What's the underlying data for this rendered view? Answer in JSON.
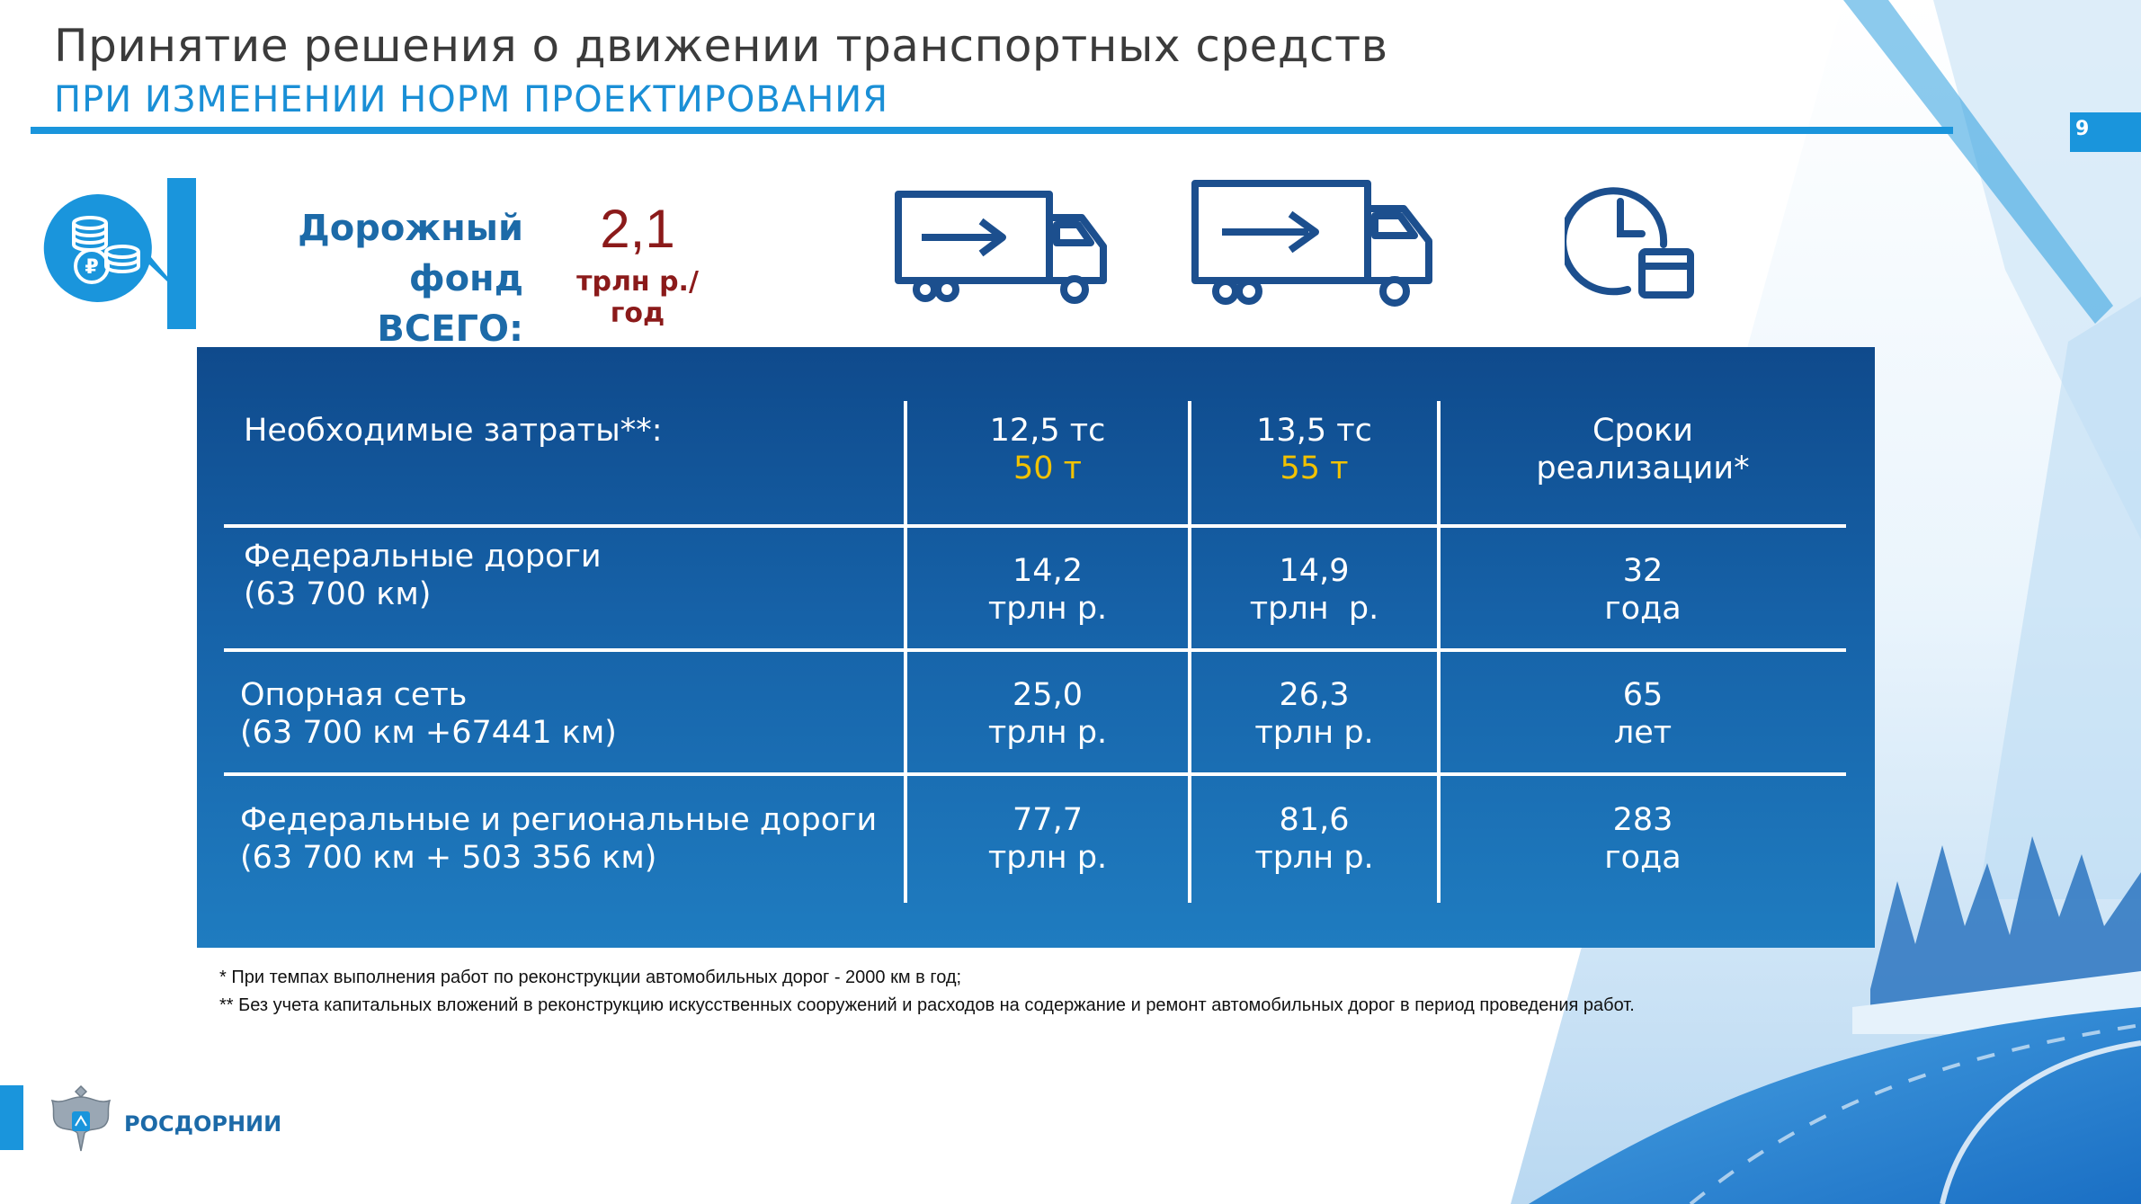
{
  "header": {
    "title": "Принятие решения о движении транспортных средств",
    "subtitle": "ПРИ ИЗМЕНЕНИИ НОРМ ПРОЕКТИРОВАНИЯ",
    "page_number": "9"
  },
  "fund": {
    "label_line1": "Дорожный фонд",
    "label_line2": "ВСЕГО:",
    "value": "2,1",
    "unit": "трлн р./год",
    "icon": "coins-ruble-icon"
  },
  "icons": {
    "truck_small": "truck-icon",
    "truck_large": "truck-icon",
    "clock": "clock-calendar-icon"
  },
  "table": {
    "header": {
      "label": "Необходимые затраты**:",
      "col1_line1": "12,5 тс",
      "col1_line2": "50 т",
      "col2_line1": "13,5 тс",
      "col2_line2": "55 т",
      "col3_line1": "Сроки",
      "col3_line2": "реализации*"
    },
    "rows": [
      {
        "label_line1": "Федеральные дороги",
        "label_line2": "(63 700 км)",
        "c1_line1": "14,2",
        "c1_line2": "трлн р.",
        "c2_line1": "14,9",
        "c2_line2": "трлн  р.",
        "c3_line1": "32",
        "c3_line2": "года"
      },
      {
        "label_line1": "Опорная сеть",
        "label_line2": "(63 700 км +67441 км)",
        "c1_line1": "25,0",
        "c1_line2": "трлн р.",
        "c2_line1": "26,3",
        "c2_line2": "трлн р.",
        "c3_line1": "65",
        "c3_line2": "лет"
      },
      {
        "label_line1": "Федеральные и региональные дороги",
        "label_line2": "(63 700 км + 503 356 км)",
        "c1_line1": "77,7",
        "c1_line2": "трлн р.",
        "c2_line1": "81,6",
        "c2_line2": "трлн р.",
        "c3_line1": "283",
        "c3_line2": "года"
      }
    ]
  },
  "footnotes": {
    "note1": "*  При темпах выполнения работ по реконструкции автомобильных дорог - 2000 км в год;",
    "note2": "** Без учета капитальных вложений в реконструкцию искусственных сооружений и расходов на содержание и ремонт автомобильных дорог в период проведения работ."
  },
  "logo": {
    "text": "РОСДОРНИИ",
    "emblem": "eagle-emblem-icon"
  },
  "colors": {
    "accent": "#1a95dc",
    "dark_blue": "#1c6aa8",
    "value_red": "#8b1a1a",
    "highlight_yellow": "#f2c200",
    "table_bg": "#1662a8"
  }
}
